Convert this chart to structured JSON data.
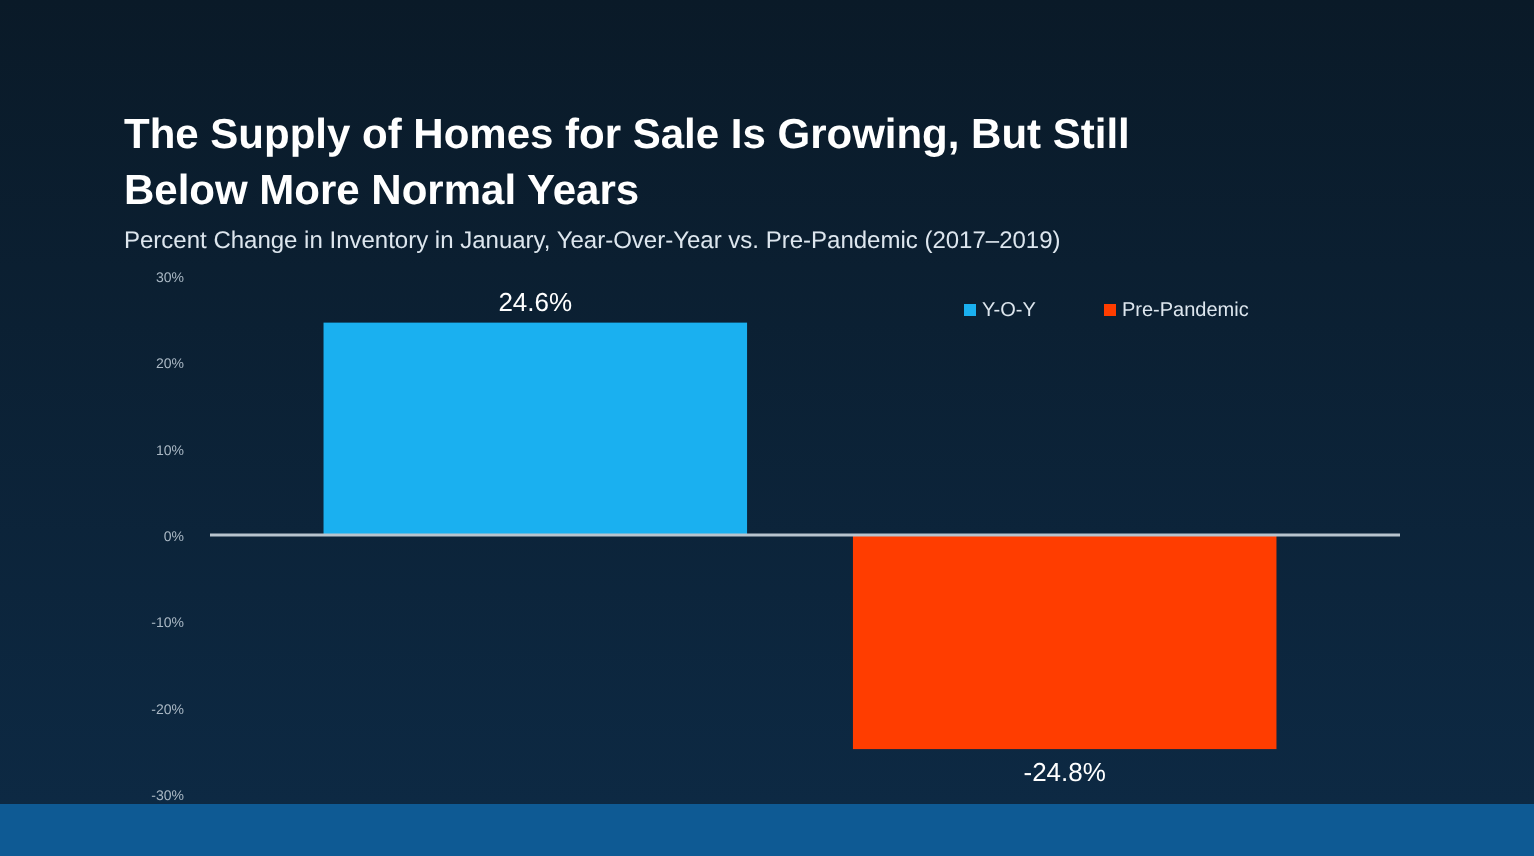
{
  "chart_data": {
    "type": "bar",
    "title": "The Supply of Homes for Sale Is Growing, But Still Below More Normal Years",
    "subtitle": "Percent Change in Inventory in January, Year-Over-Year vs. Pre-Pandemic (2017–2019)",
    "categories": [
      null,
      null
    ],
    "series": [
      {
        "name": "Y-O-Y",
        "color": "#1ab0f0",
        "values": [
          24.6,
          null
        ],
        "value_labels": [
          "24.6%",
          null
        ]
      },
      {
        "name": "Pre-Pandemic",
        "color": "#ff3d00",
        "values": [
          null,
          -24.8
        ],
        "value_labels": [
          null,
          "-24.8%"
        ]
      }
    ],
    "ylim": [
      -30,
      30
    ],
    "yticks": [
      {
        "value": -30,
        "label": "-30%"
      },
      {
        "value": -20,
        "label": "-20%"
      },
      {
        "value": -10,
        "label": "-10%"
      },
      {
        "value": 0,
        "label": "0%"
      },
      {
        "value": 10,
        "label": "10%"
      },
      {
        "value": 20,
        "label": "20%"
      },
      {
        "value": 30,
        "label": "30%"
      }
    ],
    "legend": "top right"
  }
}
